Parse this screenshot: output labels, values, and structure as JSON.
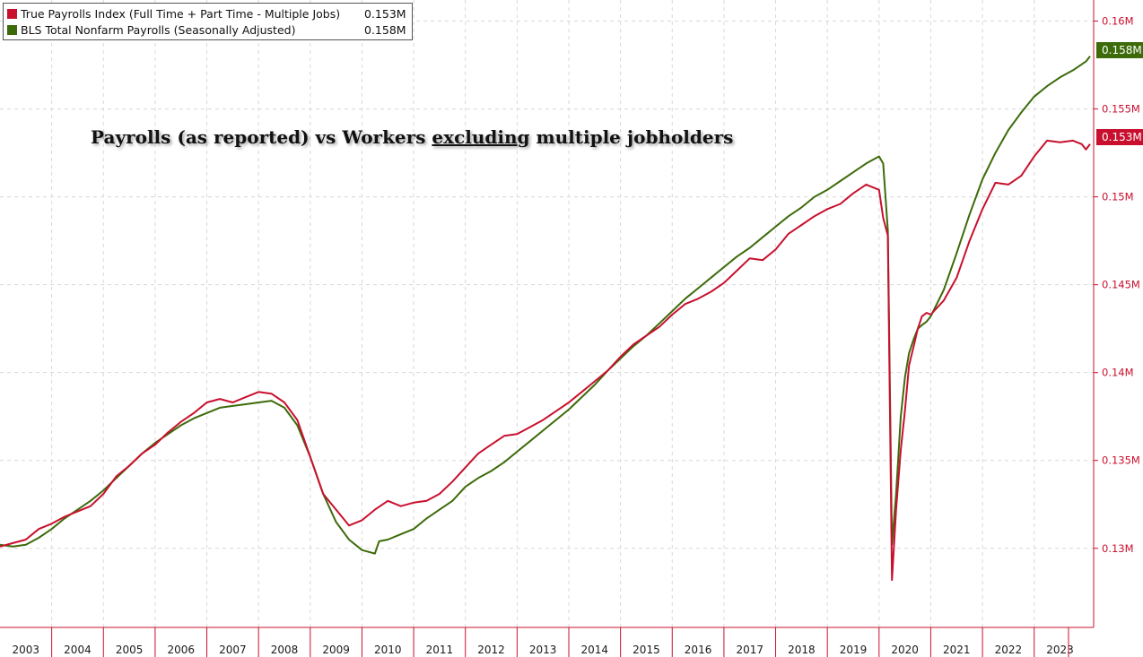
{
  "chart_data": {
    "type": "line",
    "title_parts": {
      "before": "Payrolls (as reported) vs Workers ",
      "underlined": "excluding",
      "after": " multiple jobholders"
    },
    "xlabel": "",
    "ylabel": "",
    "x_categories": [
      "2003",
      "2004",
      "2005",
      "2006",
      "2007",
      "2008",
      "2009",
      "2010",
      "2011",
      "2012",
      "2013",
      "2014",
      "2015",
      "2016",
      "2017",
      "2018",
      "2019",
      "2020",
      "2021",
      "2022",
      "2023"
    ],
    "xlim": [
      2003.0,
      2024.15
    ],
    "ylim": [
      0.1255,
      0.1612
    ],
    "y_ticks": [
      0.13,
      0.135,
      0.14,
      0.145,
      0.15,
      0.155,
      0.16
    ],
    "y_tick_labels": [
      "0.13M",
      "0.135M",
      "0.14M",
      "0.145M",
      "0.15M",
      "0.155M",
      "0.16M"
    ],
    "grid": true,
    "legend_position": "top-left",
    "series": [
      {
        "name": "True Payrolls Index (Full Time + Part Time - Multiple Jobs)",
        "last_label": "0.153M",
        "color": "#c8102e",
        "points": [
          [
            2003.0,
            0.1301
          ],
          [
            2003.25,
            0.1303
          ],
          [
            2003.5,
            0.1305
          ],
          [
            2003.75,
            0.1311
          ],
          [
            2004.0,
            0.1314
          ],
          [
            2004.25,
            0.1318
          ],
          [
            2004.5,
            0.1321
          ],
          [
            2004.75,
            0.1324
          ],
          [
            2005.0,
            0.1331
          ],
          [
            2005.25,
            0.1341
          ],
          [
            2005.5,
            0.1347
          ],
          [
            2005.75,
            0.1354
          ],
          [
            2006.0,
            0.1359
          ],
          [
            2006.25,
            0.1366
          ],
          [
            2006.5,
            0.1372
          ],
          [
            2006.75,
            0.1377
          ],
          [
            2007.0,
            0.1383
          ],
          [
            2007.25,
            0.1385
          ],
          [
            2007.5,
            0.1383
          ],
          [
            2007.75,
            0.1386
          ],
          [
            2008.0,
            0.1389
          ],
          [
            2008.25,
            0.1388
          ],
          [
            2008.5,
            0.1383
          ],
          [
            2008.75,
            0.1373
          ],
          [
            2009.0,
            0.1352
          ],
          [
            2009.25,
            0.1331
          ],
          [
            2009.5,
            0.1322
          ],
          [
            2009.75,
            0.1313
          ],
          [
            2010.0,
            0.1316
          ],
          [
            2010.25,
            0.1322
          ],
          [
            2010.5,
            0.1327
          ],
          [
            2010.75,
            0.1324
          ],
          [
            2011.0,
            0.1326
          ],
          [
            2011.25,
            0.1327
          ],
          [
            2011.5,
            0.1331
          ],
          [
            2011.75,
            0.1338
          ],
          [
            2012.0,
            0.1346
          ],
          [
            2012.25,
            0.1354
          ],
          [
            2012.5,
            0.1359
          ],
          [
            2012.75,
            0.1364
          ],
          [
            2013.0,
            0.1365
          ],
          [
            2013.25,
            0.1369
          ],
          [
            2013.5,
            0.1373
          ],
          [
            2013.75,
            0.1378
          ],
          [
            2014.0,
            0.1383
          ],
          [
            2014.25,
            0.1389
          ],
          [
            2014.5,
            0.1395
          ],
          [
            2014.75,
            0.1401
          ],
          [
            2015.0,
            0.1409
          ],
          [
            2015.25,
            0.1416
          ],
          [
            2015.5,
            0.1421
          ],
          [
            2015.75,
            0.1426
          ],
          [
            2016.0,
            0.1433
          ],
          [
            2016.25,
            0.1439
          ],
          [
            2016.5,
            0.1442
          ],
          [
            2016.75,
            0.1446
          ],
          [
            2017.0,
            0.1451
          ],
          [
            2017.25,
            0.1458
          ],
          [
            2017.5,
            0.1465
          ],
          [
            2017.75,
            0.1464
          ],
          [
            2018.0,
            0.147
          ],
          [
            2018.25,
            0.1479
          ],
          [
            2018.5,
            0.1484
          ],
          [
            2018.75,
            0.1489
          ],
          [
            2019.0,
            0.1493
          ],
          [
            2019.25,
            0.1496
          ],
          [
            2019.5,
            0.1502
          ],
          [
            2019.75,
            0.1507
          ],
          [
            2020.0,
            0.1504
          ],
          [
            2020.08,
            0.1488
          ],
          [
            2020.17,
            0.1478
          ],
          [
            2020.25,
            0.1282
          ],
          [
            2020.33,
            0.1322
          ],
          [
            2020.42,
            0.1356
          ],
          [
            2020.5,
            0.1378
          ],
          [
            2020.58,
            0.1404
          ],
          [
            2020.67,
            0.1415
          ],
          [
            2020.75,
            0.1425
          ],
          [
            2020.83,
            0.1432
          ],
          [
            2020.92,
            0.1434
          ],
          [
            2021.0,
            0.1433
          ],
          [
            2021.25,
            0.1441
          ],
          [
            2021.5,
            0.1454
          ],
          [
            2021.75,
            0.1475
          ],
          [
            2022.0,
            0.1493
          ],
          [
            2022.25,
            0.1508
          ],
          [
            2022.5,
            0.1507
          ],
          [
            2022.75,
            0.1512
          ],
          [
            2023.0,
            0.1523
          ],
          [
            2023.25,
            0.1532
          ],
          [
            2023.5,
            0.1531
          ],
          [
            2023.75,
            0.1532
          ],
          [
            2023.92,
            0.153
          ],
          [
            2024.0,
            0.1527
          ],
          [
            2024.08,
            0.153
          ]
        ]
      },
      {
        "name": "BLS Total Nonfarm Payrolls (Seasonally Adjusted)",
        "last_label": "0.158M",
        "color": "#3d6b0a",
        "points": [
          [
            2003.0,
            0.1302
          ],
          [
            2003.25,
            0.1301
          ],
          [
            2003.5,
            0.1302
          ],
          [
            2003.75,
            0.1306
          ],
          [
            2004.0,
            0.1311
          ],
          [
            2004.25,
            0.1317
          ],
          [
            2004.5,
            0.1322
          ],
          [
            2004.75,
            0.1327
          ],
          [
            2005.0,
            0.1333
          ],
          [
            2005.25,
            0.134
          ],
          [
            2005.5,
            0.1347
          ],
          [
            2005.75,
            0.1354
          ],
          [
            2006.0,
            0.136
          ],
          [
            2006.25,
            0.1365
          ],
          [
            2006.5,
            0.137
          ],
          [
            2006.75,
            0.1374
          ],
          [
            2007.0,
            0.1377
          ],
          [
            2007.25,
            0.138
          ],
          [
            2007.5,
            0.1381
          ],
          [
            2007.75,
            0.1382
          ],
          [
            2008.0,
            0.1383
          ],
          [
            2008.25,
            0.1384
          ],
          [
            2008.5,
            0.138
          ],
          [
            2008.75,
            0.137
          ],
          [
            2009.0,
            0.1352
          ],
          [
            2009.25,
            0.1331
          ],
          [
            2009.5,
            0.1315
          ],
          [
            2009.75,
            0.1305
          ],
          [
            2010.0,
            0.1299
          ],
          [
            2010.25,
            0.1297
          ],
          [
            2010.33,
            0.1304
          ],
          [
            2010.5,
            0.1305
          ],
          [
            2010.75,
            0.1308
          ],
          [
            2011.0,
            0.1311
          ],
          [
            2011.25,
            0.1317
          ],
          [
            2011.5,
            0.1322
          ],
          [
            2011.75,
            0.1327
          ],
          [
            2012.0,
            0.1335
          ],
          [
            2012.25,
            0.134
          ],
          [
            2012.5,
            0.1344
          ],
          [
            2012.75,
            0.1349
          ],
          [
            2013.0,
            0.1355
          ],
          [
            2013.25,
            0.1361
          ],
          [
            2013.5,
            0.1367
          ],
          [
            2013.75,
            0.1373
          ],
          [
            2014.0,
            0.1379
          ],
          [
            2014.25,
            0.1386
          ],
          [
            2014.5,
            0.1393
          ],
          [
            2014.75,
            0.1401
          ],
          [
            2015.0,
            0.1408
          ],
          [
            2015.25,
            0.1415
          ],
          [
            2015.5,
            0.1421
          ],
          [
            2015.75,
            0.1428
          ],
          [
            2016.0,
            0.1435
          ],
          [
            2016.25,
            0.1442
          ],
          [
            2016.5,
            0.1448
          ],
          [
            2016.75,
            0.1454
          ],
          [
            2017.0,
            0.146
          ],
          [
            2017.25,
            0.1466
          ],
          [
            2017.5,
            0.1471
          ],
          [
            2017.75,
            0.1477
          ],
          [
            2018.0,
            0.1483
          ],
          [
            2018.25,
            0.1489
          ],
          [
            2018.5,
            0.1494
          ],
          [
            2018.75,
            0.15
          ],
          [
            2019.0,
            0.1504
          ],
          [
            2019.25,
            0.1509
          ],
          [
            2019.5,
            0.1514
          ],
          [
            2019.75,
            0.1519
          ],
          [
            2020.0,
            0.1523
          ],
          [
            2020.08,
            0.1519
          ],
          [
            2020.17,
            0.1481
          ],
          [
            2020.25,
            0.1302
          ],
          [
            2020.33,
            0.1331
          ],
          [
            2020.42,
            0.1375
          ],
          [
            2020.5,
            0.1397
          ],
          [
            2020.58,
            0.1411
          ],
          [
            2020.67,
            0.1419
          ],
          [
            2020.75,
            0.1425
          ],
          [
            2020.83,
            0.1427
          ],
          [
            2020.92,
            0.1429
          ],
          [
            2021.0,
            0.1432
          ],
          [
            2021.25,
            0.1447
          ],
          [
            2021.5,
            0.1468
          ],
          [
            2021.75,
            0.149
          ],
          [
            2022.0,
            0.151
          ],
          [
            2022.25,
            0.1525
          ],
          [
            2022.5,
            0.1538
          ],
          [
            2022.75,
            0.1548
          ],
          [
            2023.0,
            0.1557
          ],
          [
            2023.25,
            0.1563
          ],
          [
            2023.5,
            0.1568
          ],
          [
            2023.75,
            0.1572
          ],
          [
            2024.0,
            0.1577
          ],
          [
            2024.08,
            0.158
          ]
        ]
      }
    ]
  }
}
